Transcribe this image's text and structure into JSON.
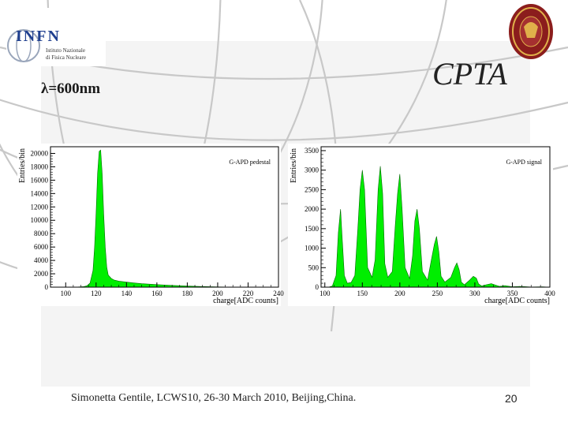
{
  "slide": {
    "wavelength_label": "λ=600nm",
    "title": "CPTA",
    "footer": "Simonetta Gentile,  LCWS10, 26-30 March 2010, Beijing,China.",
    "page_number": "20"
  },
  "logos": {
    "infn_name": "INFN",
    "infn_sub_1": "Istituto Nazionale",
    "infn_sub_2": "di Fisica Nucleare",
    "seal_icon": "university-seal-icon"
  },
  "colors": {
    "fill": "#00ee00",
    "title_text": "#222222",
    "background_grid": "#c8c8c8"
  },
  "chart_data": [
    {
      "type": "area",
      "legend": "G-APD pedestal",
      "legend_position": "top-right",
      "xlabel": "charge[ADC counts]",
      "ylabel": "Entries/bin",
      "xlim": [
        90,
        240
      ],
      "ylim": [
        0,
        21000
      ],
      "xticks": [
        100,
        120,
        140,
        160,
        180,
        200,
        220,
        240
      ],
      "yticks": [
        0,
        2000,
        4000,
        6000,
        8000,
        10000,
        12000,
        14000,
        16000,
        18000,
        20000
      ],
      "x": [
        100,
        108,
        112,
        114,
        116,
        118,
        119,
        120,
        121,
        122,
        123,
        124,
        125,
        126,
        127,
        128,
        130,
        132,
        135,
        140,
        145,
        150,
        160,
        170,
        180,
        190,
        200,
        210,
        220
      ],
      "y": [
        0,
        20,
        80,
        200,
        600,
        2500,
        6000,
        11000,
        17000,
        20300,
        20500,
        17000,
        11000,
        6000,
        3000,
        1800,
        1300,
        1050,
        900,
        750,
        620,
        520,
        380,
        260,
        160,
        90,
        40,
        15,
        0
      ]
    },
    {
      "type": "area",
      "legend": "G-APD  signal",
      "legend_position": "top-right",
      "xlabel": "charge[ADC counts]",
      "ylabel": "Entries/bin",
      "xlim": [
        95,
        400
      ],
      "ylim": [
        0,
        3600
      ],
      "xticks": [
        100,
        150,
        200,
        250,
        300,
        350,
        400
      ],
      "yticks": [
        0,
        500,
        1000,
        1500,
        2000,
        2500,
        3000,
        3500
      ],
      "x": [
        105,
        110,
        115,
        118,
        121,
        123,
        126,
        130,
        135,
        140,
        144,
        147,
        150,
        153,
        157,
        163,
        167,
        171,
        174,
        177,
        180,
        184,
        190,
        194,
        197,
        200,
        203,
        207,
        213,
        217,
        220,
        223,
        226,
        230,
        237,
        242,
        246,
        249,
        252,
        255,
        260,
        268,
        273,
        276,
        279,
        282,
        286,
        293,
        298,
        302,
        305,
        309,
        315,
        322,
        328,
        333,
        340,
        350,
        360,
        375,
        390,
        400
      ],
      "y": [
        0,
        30,
        300,
        1400,
        2000,
        1300,
        300,
        100,
        120,
        300,
        1500,
        2500,
        3000,
        2500,
        500,
        250,
        700,
        2500,
        3100,
        2400,
        600,
        250,
        400,
        1600,
        2400,
        2900,
        2000,
        500,
        220,
        800,
        1700,
        2000,
        1500,
        400,
        180,
        700,
        1100,
        1300,
        900,
        280,
        130,
        250,
        500,
        620,
        450,
        130,
        60,
        180,
        280,
        230,
        80,
        30,
        60,
        90,
        50,
        20,
        40,
        10,
        20,
        5,
        10,
        0
      ]
    }
  ]
}
